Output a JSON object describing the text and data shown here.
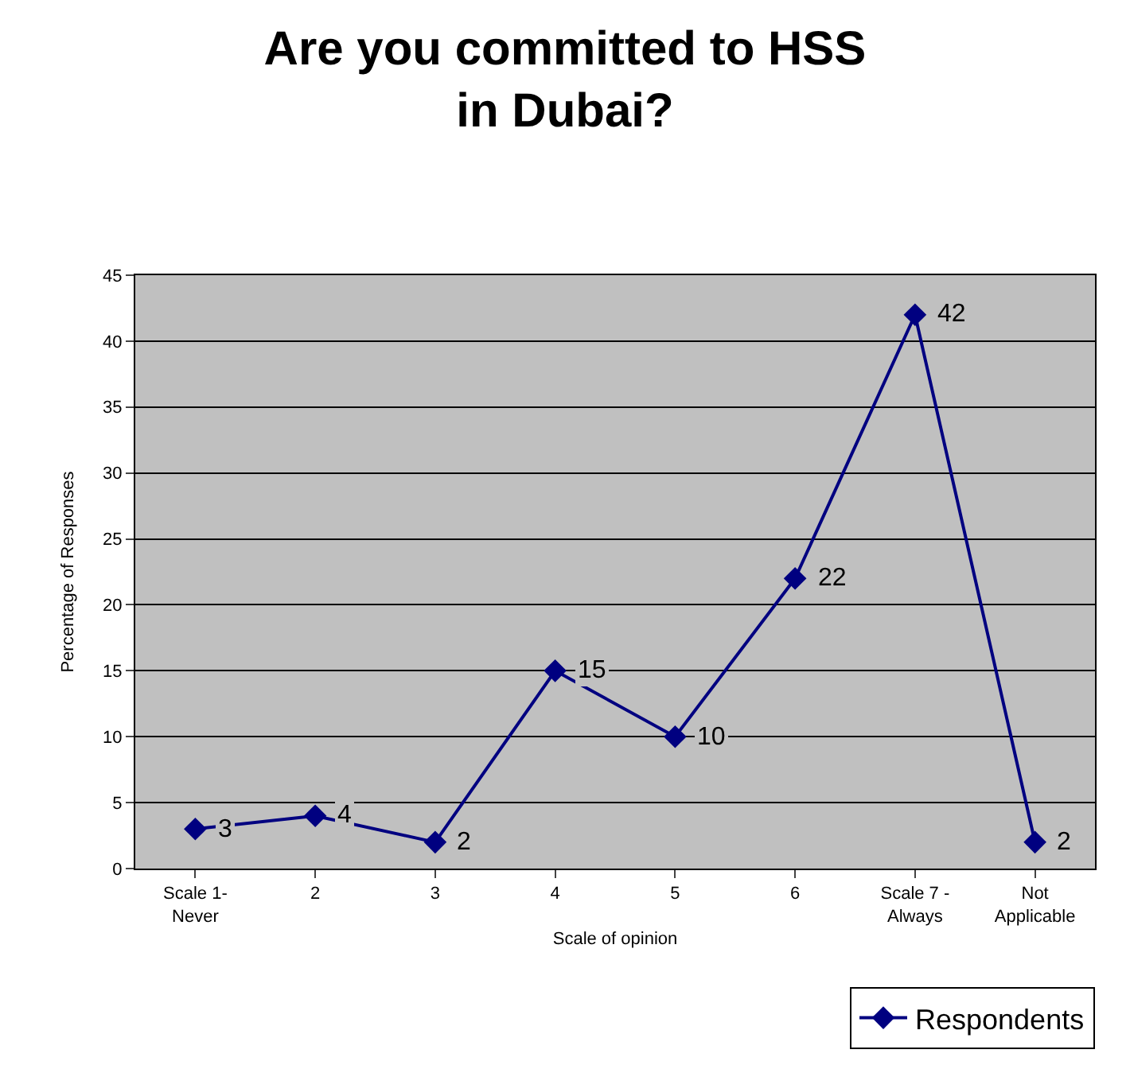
{
  "chart_data": {
    "type": "line",
    "title": "Are you committed to HSS in Dubai?",
    "xlabel": "Scale of opinion",
    "ylabel": "Percentage of Responses",
    "categories": [
      "Scale 1-\nNever",
      "2",
      "3",
      "4",
      "5",
      "6",
      "Scale 7 -\nAlways",
      "Not\nApplicable"
    ],
    "series": [
      {
        "name": "Respondents",
        "color": "#000080",
        "values": [
          3,
          4,
          2,
          15,
          10,
          22,
          42,
          2
        ]
      }
    ],
    "ylim": [
      0,
      45
    ],
    "yticks": [
      0,
      5,
      10,
      15,
      20,
      25,
      30,
      35,
      40,
      45
    ],
    "grid": "y",
    "legend": "bottom right",
    "marker": "diamond",
    "line_style": "solid",
    "data_labels": true
  }
}
